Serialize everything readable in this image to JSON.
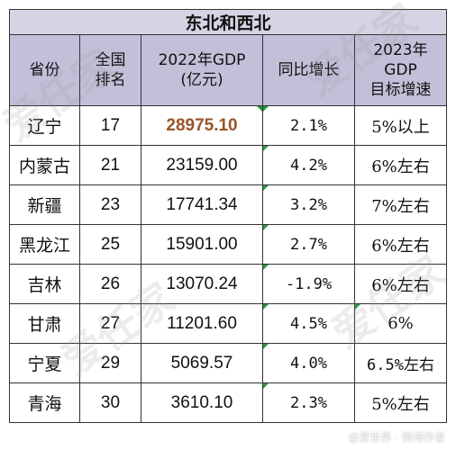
{
  "table": {
    "title": "东北和西北",
    "headers": {
      "province": [
        "省份"
      ],
      "rank": [
        "全国",
        "排名"
      ],
      "gdp": [
        "2022年GDP",
        "(亿元)"
      ],
      "yoy": [
        "同比增长"
      ],
      "target": [
        "2023年",
        "GDP",
        "目标增速"
      ]
    },
    "rows": [
      {
        "province": "辽宁",
        "rank": "17",
        "gdp": "28975.10",
        "yoy": "2.1%",
        "target": "5%以上",
        "highlight": true
      },
      {
        "province": "内蒙古",
        "rank": "21",
        "gdp": "23159.00",
        "yoy": "4.2%",
        "target": "6%左右"
      },
      {
        "province": "新疆",
        "rank": "23",
        "gdp": "17741.34",
        "yoy": "3.2%",
        "target": "7%左右"
      },
      {
        "province": "黑龙江",
        "rank": "25",
        "gdp": "15901.00",
        "yoy": "2.7%",
        "target": "6%左右"
      },
      {
        "province": "吉林",
        "rank": "26",
        "gdp": "13070.24",
        "yoy": "-1.9%",
        "target": "6%左右"
      },
      {
        "province": "甘肃",
        "rank": "27",
        "gdp": "11201.60",
        "yoy": "4.5%",
        "target": "6%"
      },
      {
        "province": "宁夏",
        "rank": "29",
        "gdp": "5069.57",
        "yoy": "4.0%",
        "target": "6.5%左右"
      },
      {
        "province": "青海",
        "rank": "30",
        "gdp": "3610.10",
        "yoy": "2.3%",
        "target": "5%左右"
      }
    ]
  },
  "watermark": "爱任家",
  "credit": "@爱世界 · 微博作者",
  "colors": {
    "title_bg": "#d6d4e4",
    "header_bg": "#c2c0d8",
    "highlight_text": "#9a5427",
    "cell_flag": "#2a9a3c"
  }
}
